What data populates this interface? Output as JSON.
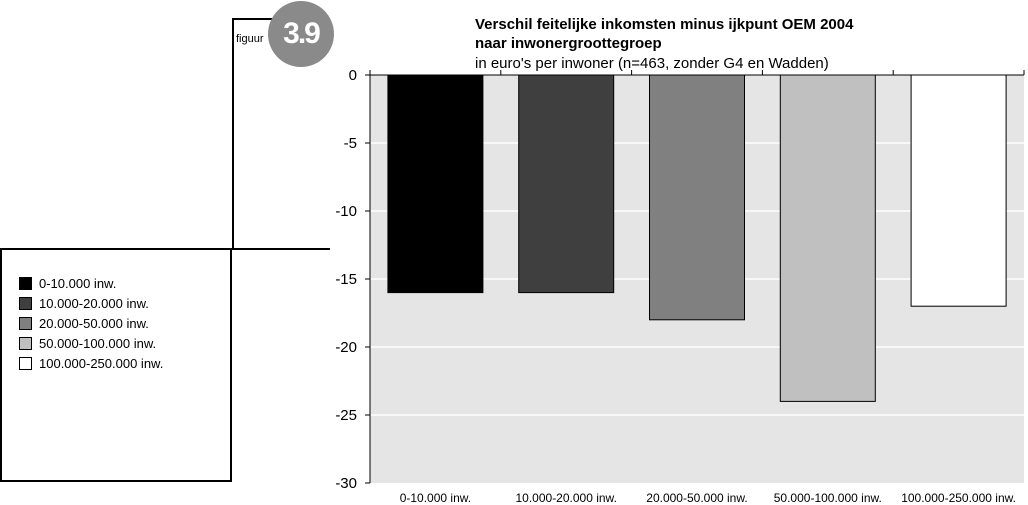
{
  "figure": {
    "label": "figuur",
    "number": "3.9"
  },
  "chart_data": {
    "type": "bar",
    "title": "Verschil feitelijke inkomsten minus ijkpunt OEM 2004 naar inwonergroottegroep",
    "title_lines": [
      "Verschil feitelijke inkomsten minus ijkpunt OEM 2004",
      "naar inwonergroottegroep"
    ],
    "subtitle": "in euro's per inwoner (n=463, zonder G4 en Wadden)",
    "xlabel": "",
    "ylabel": "",
    "categories": [
      "0-10.000 inw.",
      "10.000-20.000 inw.",
      "20.000-50.000 inw.",
      "50.000-100.000 inw.",
      "100.000-250.000 inw."
    ],
    "values": [
      -16,
      -16,
      -18,
      -24,
      -17
    ],
    "colors": [
      "#000000",
      "#3f3f3f",
      "#808080",
      "#c0c0c0",
      "#ffffff"
    ],
    "ylim": [
      -30,
      0
    ],
    "yticks": [
      0,
      -5,
      -10,
      -15,
      -20,
      -25,
      -30
    ],
    "grid": true,
    "plot_background": "#e5e5e5",
    "legend": {
      "placement": "left",
      "entries": [
        "0-10.000 inw.",
        "10.000-20.000 inw.",
        "20.000-50.000 inw.",
        "50.000-100.000 inw.",
        "100.000-250.000 inw."
      ]
    }
  }
}
